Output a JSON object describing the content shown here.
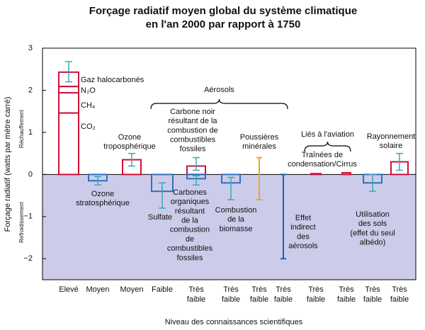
{
  "chart_data": {
    "type": "bar",
    "title": [
      "Forçage radiatif moyen global du système climatique",
      "en l'an 2000 par rapport à 1750"
    ],
    "ylabel": "Forçage radiatif  (watts par mètre carré)",
    "warming_label": "Réchauffement",
    "cooling_label": "Refroidissement",
    "xlabel": "Niveau des connaissances scientifiques",
    "ylim": [
      -2.5,
      3
    ],
    "yticks": [
      {
        "value": -2,
        "label": "−2"
      },
      {
        "value": -1,
        "label": "−1"
      },
      0,
      1,
      2,
      3
    ],
    "cooling_fill": "#ccccea",
    "error_color": "#3aa8b8",
    "groups": [
      {
        "label": "Aérosols",
        "from": 3,
        "to": 7
      },
      {
        "label": "Liés à l'aviation",
        "from": 8,
        "to": 9
      }
    ],
    "columns": [
      {
        "level": [
          "Elevé"
        ],
        "bars": [
          {
            "label": [
              "CO₂"
            ],
            "value": 1.46,
            "color": "#d0103a"
          },
          {
            "label": [
              "CH₄"
            ],
            "value": 0.48,
            "color": "#d0103a"
          },
          {
            "label": [
              "N₂O"
            ],
            "value": 0.15,
            "color": "#d0103a"
          },
          {
            "label": [
              "Gaz halocarbonés"
            ],
            "value": 0.34,
            "color": "#d0103a"
          }
        ],
        "error": [
          [
            2.2,
            2.68
          ]
        ]
      },
      {
        "level": [
          "Moyen"
        ],
        "bars": [
          {
            "label": [
              "Ozone",
              "stratosphérique"
            ],
            "value": -0.15,
            "color": "#3070c0"
          }
        ],
        "error": [
          [
            -0.25,
            -0.05
          ]
        ]
      },
      {
        "level": [
          "Moyen"
        ],
        "bars": [
          {
            "label": [
              "Ozone",
              "troposphérique"
            ],
            "value": 0.35,
            "color": "#d0103a"
          }
        ],
        "error": [
          [
            0.2,
            0.5
          ]
        ]
      },
      {
        "level": [
          "Faible"
        ],
        "bars": [
          {
            "label": [
              "Sulfate"
            ],
            "value": -0.4,
            "color": "#3070c0"
          }
        ],
        "error": [
          [
            -0.8,
            -0.2
          ]
        ]
      },
      {
        "level": [
          "Très",
          "faible"
        ],
        "bars": [
          {
            "label": [
              "Carbone noir",
              "résultant de la",
              "combustion de",
              "combustibles",
              "fossiles"
            ],
            "value": 0.2,
            "color": "#d0103a"
          },
          {
            "label": [
              "Carbones",
              "organiques",
              "résultant",
              "de la",
              "combustion",
              "de",
              "combustibles",
              "fossiles"
            ],
            "value": -0.1,
            "color": "#3070c0"
          }
        ],
        "error": [
          [
            0.1,
            0.4
          ],
          [
            -0.25,
            -0.03
          ]
        ]
      },
      {
        "level": [
          "Très",
          "faible"
        ],
        "bars": [
          {
            "label": [
              "Combustion",
              "de la",
              "biomasse"
            ],
            "value": -0.2,
            "color": "#3070c0"
          }
        ],
        "error": [
          [
            -0.6,
            -0.07
          ]
        ]
      },
      {
        "level": [
          "Très",
          "faible"
        ],
        "bars": [],
        "range": {
          "label": [
            "Poussières",
            "minérales"
          ],
          "values": [
            -0.6,
            0.4
          ],
          "color": "#f0a818"
        }
      },
      {
        "level": [
          "Très",
          "faible"
        ],
        "bars": [],
        "range": {
          "label": [
            "Effet",
            "indirect",
            "des",
            "aérosols"
          ],
          "values": [
            -2,
            0
          ],
          "color": "#2060b0"
        }
      },
      {
        "level": [
          "Très",
          "faible"
        ],
        "bars": [
          {
            "label": [
              "Traînées de",
              "condensation/Cirrus"
            ],
            "value": 0.02,
            "color": "#d0103a"
          }
        ]
      },
      {
        "level": [
          "Très",
          "faible"
        ],
        "bars": [
          {
            "value": 0.04,
            "color": "#d0103a"
          }
        ]
      },
      {
        "level": [
          "Très",
          "faible"
        ],
        "bars": [
          {
            "label": [
              "Utilisation",
              "des sols",
              "(effet du seul",
              "albédo)"
            ],
            "value": -0.2,
            "color": "#3070c0"
          }
        ],
        "error": [
          [
            -0.4,
            0
          ]
        ]
      },
      {
        "level": [
          "Très",
          "faible"
        ],
        "bars": [
          {
            "label": [
              "Rayonnement",
              "solaire"
            ],
            "value": 0.3,
            "color": "#d0103a"
          }
        ],
        "error": [
          [
            0.1,
            0.5
          ]
        ]
      }
    ]
  }
}
